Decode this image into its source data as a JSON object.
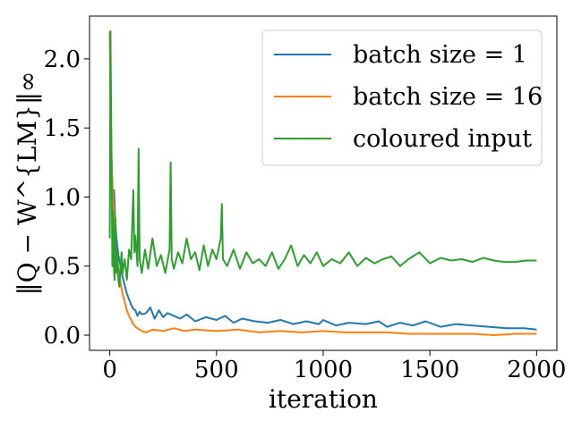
{
  "chart_data": {
    "type": "line",
    "title": "",
    "xlabel": "iteration",
    "ylabel": "‖Q − W^{LM}‖∞",
    "xlim": [
      -95,
      2095
    ],
    "ylim": [
      -0.11,
      2.31
    ],
    "xticks": [
      0,
      500,
      1000,
      1500,
      2000
    ],
    "xtick_labels": [
      "0",
      "500",
      "1000",
      "1500",
      "2000"
    ],
    "yticks": [
      0.0,
      0.5,
      1.0,
      1.5,
      2.0
    ],
    "ytick_labels": [
      "0.0",
      "0.5",
      "1.0",
      "1.5",
      "2.0"
    ],
    "grid": false,
    "legend_position": "top-right",
    "series": [
      {
        "name": "batch size = 1",
        "color": "#1f77b4",
        "x": [
          0,
          5,
          10,
          15,
          20,
          25,
          30,
          40,
          50,
          60,
          70,
          80,
          90,
          100,
          110,
          120,
          130,
          140,
          150,
          170,
          190,
          210,
          230,
          250,
          270,
          300,
          330,
          360,
          400,
          450,
          500,
          540,
          580,
          620,
          680,
          740,
          800,
          860,
          920,
          980,
          1000,
          1060,
          1120,
          1200,
          1260,
          1300,
          1360,
          1420,
          1480,
          1550,
          1620,
          1700,
          1780,
          1860,
          1940,
          2000
        ],
        "y": [
          2.2,
          1.45,
          1.15,
          0.95,
          1.05,
          0.85,
          0.72,
          0.58,
          0.5,
          0.42,
          0.36,
          0.3,
          0.26,
          0.22,
          0.19,
          0.18,
          0.14,
          0.17,
          0.15,
          0.16,
          0.2,
          0.12,
          0.18,
          0.13,
          0.16,
          0.14,
          0.12,
          0.15,
          0.1,
          0.13,
          0.11,
          0.14,
          0.09,
          0.12,
          0.1,
          0.09,
          0.11,
          0.08,
          0.1,
          0.08,
          0.11,
          0.07,
          0.09,
          0.08,
          0.1,
          0.06,
          0.09,
          0.07,
          0.1,
          0.06,
          0.08,
          0.07,
          0.06,
          0.05,
          0.05,
          0.04
        ]
      },
      {
        "name": "batch size = 16",
        "color": "#ff7f0e",
        "x": [
          0,
          5,
          10,
          15,
          20,
          25,
          30,
          40,
          50,
          60,
          70,
          80,
          90,
          100,
          110,
          120,
          130,
          140,
          150,
          170,
          200,
          250,
          300,
          350,
          400,
          500,
          600,
          700,
          800,
          900,
          1000,
          1100,
          1200,
          1300,
          1400,
          1500,
          1600,
          1700,
          1800,
          1900,
          2000
        ],
        "y": [
          2.2,
          1.55,
          1.2,
          1.0,
          0.88,
          0.72,
          0.6,
          0.48,
          0.38,
          0.3,
          0.24,
          0.18,
          0.14,
          0.11,
          0.08,
          0.06,
          0.05,
          0.04,
          0.03,
          0.02,
          0.04,
          0.03,
          0.05,
          0.03,
          0.04,
          0.03,
          0.04,
          0.02,
          0.03,
          0.02,
          0.03,
          0.02,
          0.02,
          0.02,
          0.01,
          0.01,
          0.01,
          0.01,
          0.0,
          0.01,
          0.01
        ]
      },
      {
        "name": "coloured input",
        "color": "#2ca02c",
        "x": [
          0,
          3,
          6,
          9,
          12,
          15,
          18,
          22,
          26,
          30,
          35,
          40,
          45,
          50,
          55,
          60,
          70,
          80,
          90,
          100,
          110,
          115,
          120,
          130,
          135,
          140,
          150,
          165,
          180,
          200,
          220,
          240,
          260,
          280,
          285,
          290,
          300,
          320,
          340,
          360,
          380,
          400,
          420,
          440,
          460,
          480,
          500,
          520,
          525,
          530,
          550,
          580,
          610,
          640,
          670,
          700,
          730,
          760,
          790,
          820,
          850,
          880,
          910,
          940,
          970,
          1000,
          1040,
          1080,
          1120,
          1160,
          1200,
          1240,
          1280,
          1320,
          1360,
          1400,
          1450,
          1500,
          1550,
          1600,
          1650,
          1700,
          1750,
          1800,
          1850,
          1900,
          1950,
          2000
        ],
        "y": [
          0.7,
          2.2,
          1.65,
          1.1,
          0.5,
          0.9,
          0.55,
          0.4,
          0.85,
          0.45,
          0.6,
          0.4,
          0.35,
          0.5,
          0.6,
          0.45,
          0.55,
          0.4,
          0.62,
          0.55,
          1.05,
          0.6,
          0.72,
          0.5,
          1.35,
          0.55,
          0.45,
          0.62,
          0.48,
          0.7,
          0.5,
          0.58,
          0.45,
          0.62,
          1.25,
          0.55,
          0.48,
          0.6,
          0.52,
          0.7,
          0.55,
          0.6,
          0.47,
          0.65,
          0.5,
          0.62,
          0.55,
          0.7,
          0.95,
          0.55,
          0.5,
          0.62,
          0.48,
          0.6,
          0.52,
          0.55,
          0.5,
          0.6,
          0.48,
          0.55,
          0.65,
          0.5,
          0.58,
          0.52,
          0.6,
          0.5,
          0.55,
          0.52,
          0.6,
          0.5,
          0.56,
          0.52,
          0.55,
          0.57,
          0.5,
          0.55,
          0.6,
          0.52,
          0.56,
          0.54,
          0.55,
          0.53,
          0.56,
          0.54,
          0.53,
          0.53,
          0.54,
          0.54
        ]
      }
    ]
  }
}
